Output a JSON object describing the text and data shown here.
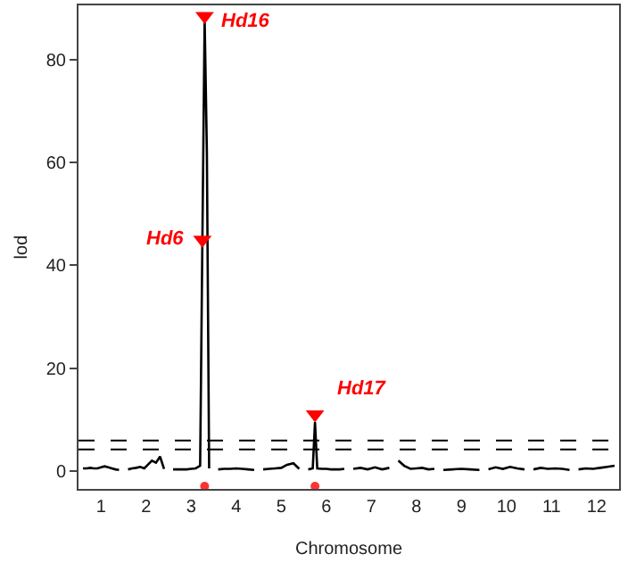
{
  "chart_data": {
    "type": "line",
    "xlabel": "Chromosome",
    "ylabel": "lod",
    "xlim": [
      0.5,
      12.5
    ],
    "xticks": [
      1,
      2,
      3,
      4,
      5,
      6,
      7,
      8,
      9,
      10,
      11,
      12
    ],
    "ylim": [
      -3.5,
      90.6
    ],
    "yticks": [
      0,
      20,
      40,
      60,
      80
    ],
    "grid": false,
    "tick_labels": true,
    "series": [
      {
        "color": "#000000",
        "marker": "none",
        "line_style": "solid",
        "x": [
          0.6,
          0.68,
          0.76,
          0.84,
          0.92,
          1.0,
          1.08,
          1.16,
          1.24,
          1.32,
          1.4,
          1.5,
          1.6,
          1.69,
          1.78,
          1.87,
          1.96,
          2.04,
          2.13,
          2.22,
          2.31,
          2.4,
          2.5,
          2.6,
          2.7,
          2.8,
          2.9,
          3.0,
          3.1,
          3.2,
          3.25,
          3.3,
          3.35,
          3.4,
          3.5,
          3.6,
          3.73,
          3.87,
          4.0,
          4.13,
          4.27,
          4.4,
          4.5,
          4.6,
          4.73,
          4.87,
          5.0,
          5.13,
          5.27,
          5.4,
          5.5,
          5.6,
          5.7,
          5.75,
          5.8,
          5.9,
          6.0,
          6.1,
          6.2,
          6.3,
          6.4,
          6.5,
          6.6,
          6.76,
          6.92,
          7.08,
          7.24,
          7.4,
          7.5,
          7.6,
          7.73,
          7.87,
          8.0,
          8.13,
          8.27,
          8.4,
          8.5,
          8.6,
          8.8,
          9.0,
          9.2,
          9.4,
          9.5,
          9.6,
          9.76,
          9.92,
          10.08,
          10.24,
          10.4,
          10.5,
          10.6,
          10.76,
          10.92,
          11.08,
          11.24,
          11.4,
          11.5,
          11.6,
          11.76,
          11.92,
          12.08,
          12.24,
          12.4
        ],
        "values": [
          0.5,
          0.5,
          0.6,
          0.5,
          0.5,
          0.7,
          0.9,
          0.7,
          0.5,
          0.3,
          0.2,
          null,
          0.3,
          0.5,
          0.6,
          0.8,
          0.5,
          1.2,
          2.0,
          1.6,
          2.8,
          0.4,
          null,
          0.3,
          0.3,
          0.3,
          0.3,
          0.4,
          0.5,
          1.0,
          45,
          88,
          62,
          0.5,
          null,
          0.3,
          0.4,
          0.4,
          0.5,
          0.4,
          0.3,
          0.2,
          null,
          0.3,
          0.4,
          0.5,
          0.6,
          1.2,
          1.5,
          0.4,
          null,
          0.3,
          0.5,
          9.5,
          0.5,
          0.4,
          0.4,
          0.3,
          0.3,
          0.3,
          0.4,
          null,
          0.4,
          0.6,
          0.3,
          0.7,
          0.3,
          0.6,
          null,
          2.0,
          1.0,
          0.4,
          0.5,
          0.6,
          0.3,
          0.4,
          null,
          0.2,
          0.3,
          0.4,
          0.3,
          0.2,
          null,
          0.3,
          0.7,
          0.4,
          0.8,
          0.5,
          0.3,
          null,
          0.3,
          0.6,
          0.4,
          0.5,
          0.4,
          0.2,
          null,
          0.3,
          0.5,
          0.4,
          0.6,
          0.8,
          1.0
        ]
      },
      {
        "type": "scatter",
        "color": "#ff0000",
        "marker": "triangle",
        "x": [
          3.25,
          3.3,
          5.75
        ],
        "values": [
          45,
          88.5,
          11
        ]
      },
      {
        "type": "scatter",
        "color": "#ff3333",
        "marker": "circle",
        "x": [
          3.3,
          5.75
        ],
        "values": [
          -3,
          -3
        ]
      }
    ],
    "ref_lines": [
      {
        "axis": "y",
        "value": 5.9,
        "color": "#000000",
        "line_style": "dashed"
      },
      {
        "axis": "y",
        "value": 4.2,
        "color": "#000000",
        "line_style": "dashed"
      }
    ],
    "annotations": [
      "Hd16",
      "Hd6",
      "Hd17"
    ]
  }
}
